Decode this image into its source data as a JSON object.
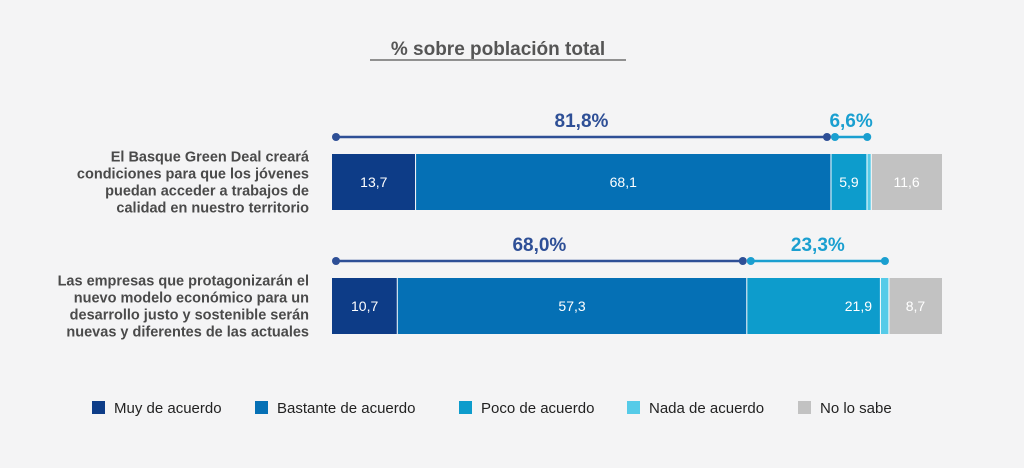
{
  "chart_data": {
    "type": "bar",
    "orientation": "horizontal",
    "stacked": true,
    "title": "% sobre población total",
    "categories": [
      [
        "El Basque Green Deal creará",
        "condiciones para que los jóvenes",
        "puedan acceder a trabajos de",
        "calidad en nuestro territorio"
      ],
      [
        "Las empresas que protagonizarán el",
        "nuevo modelo económico para un",
        "desarrollo justo y sostenible serán",
        "nuevas y diferentes de las actuales"
      ]
    ],
    "series": [
      {
        "name": "Muy de acuerdo",
        "color": "#0d3c87",
        "values": [
          13.7,
          10.7
        ],
        "labels": [
          "13,7",
          "10,7"
        ]
      },
      {
        "name": "Bastante de acuerdo",
        "color": "#0570b5",
        "values": [
          68.1,
          57.3
        ],
        "labels": [
          "68,1",
          "57,3"
        ]
      },
      {
        "name": "Poco de acuerdo",
        "color": "#0d9ccc",
        "values": [
          5.9,
          21.9
        ],
        "labels": [
          "5,9",
          "21,9"
        ]
      },
      {
        "name": "Nada de acuerdo",
        "color": "#56cbe8",
        "values": [
          0.7,
          1.4
        ],
        "labels": [
          "",
          ""
        ]
      },
      {
        "name": "No lo sabe",
        "color": "#c2c2c2",
        "values": [
          11.6,
          8.7
        ],
        "labels": [
          "11,6",
          "8,7"
        ]
      }
    ],
    "group_totals": [
      [
        {
          "label": "81,8%",
          "from_series": 0,
          "to_series": 1,
          "color": "#2e4f96"
        },
        {
          "label": "6,6%",
          "from_series": 2,
          "to_series": 3,
          "color": "#1a9fd0"
        }
      ],
      [
        {
          "label": "68,0%",
          "from_series": 0,
          "to_series": 1,
          "color": "#2e4f96"
        },
        {
          "label": "23,3%",
          "from_series": 2,
          "to_series": 3,
          "color": "#1a9fd0"
        }
      ]
    ],
    "xlim": [
      0,
      100
    ],
    "grid": false,
    "legend": "bottom"
  }
}
